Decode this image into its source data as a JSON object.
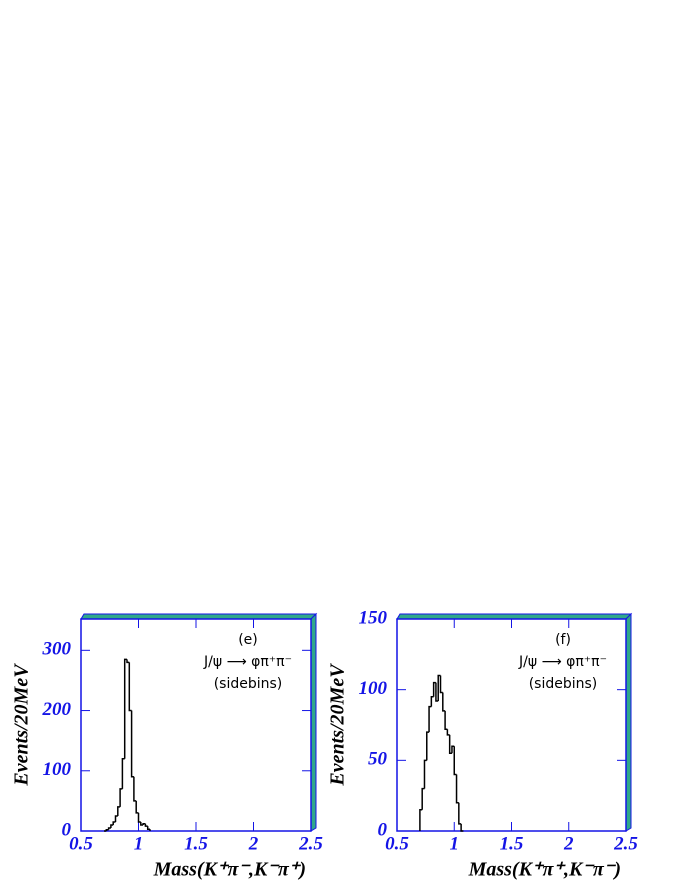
{
  "chart_data": [
    {
      "type": "histogram",
      "color": "#000000",
      "bins": [
        0.7,
        0.72,
        0.74,
        0.76,
        0.78,
        0.8,
        0.82,
        0.84,
        0.86,
        0.88,
        0.9,
        0.92,
        0.94,
        0.96,
        0.98,
        1.0,
        1.02,
        1.04,
        1.06,
        1.08,
        1.1
      ],
      "values": [
        0,
        2,
        5,
        10,
        15,
        25,
        40,
        70,
        120,
        285,
        280,
        200,
        90,
        50,
        30,
        15,
        10,
        12,
        8,
        3
      ],
      "xlim": [
        0.5,
        2.5
      ],
      "ylim": [
        0,
        352
      ],
      "xticks": [
        0.5,
        1,
        1.5,
        2,
        2.5
      ],
      "yticks": [
        0,
        100,
        200,
        300
      ],
      "x_label": "Mass(K⁺π⁻,K⁻π⁺)",
      "y_label": "Events/20MeV",
      "annotations": [
        "(e)",
        "J/ψ ⟶ φπ⁺π⁻",
        "(sidebins)"
      ]
    },
    {
      "type": "histogram",
      "color": "#000000",
      "bins": [
        0.7,
        0.72,
        0.74,
        0.76,
        0.78,
        0.8,
        0.82,
        0.84,
        0.86,
        0.88,
        0.9,
        0.92,
        0.94,
        0.96,
        0.98,
        1.0,
        1.02,
        1.04,
        1.06,
        1.08
      ],
      "values": [
        15,
        30,
        50,
        70,
        88,
        95,
        105,
        92,
        110,
        98,
        85,
        72,
        68,
        55,
        60,
        40,
        20,
        5,
        0
      ],
      "xlim": [
        0.5,
        2.5
      ],
      "ylim": [
        0,
        150
      ],
      "xticks": [
        0.5,
        1,
        1.5,
        2,
        2.5
      ],
      "yticks": [
        0,
        50,
        100,
        150
      ],
      "x_label": "Mass(K⁺π⁺,K⁻π⁻)",
      "y_label": "Events/20MeV",
      "annotations": [
        "(f)",
        "J/ψ ⟶ φπ⁺π⁻",
        "(sidebins)"
      ]
    }
  ]
}
